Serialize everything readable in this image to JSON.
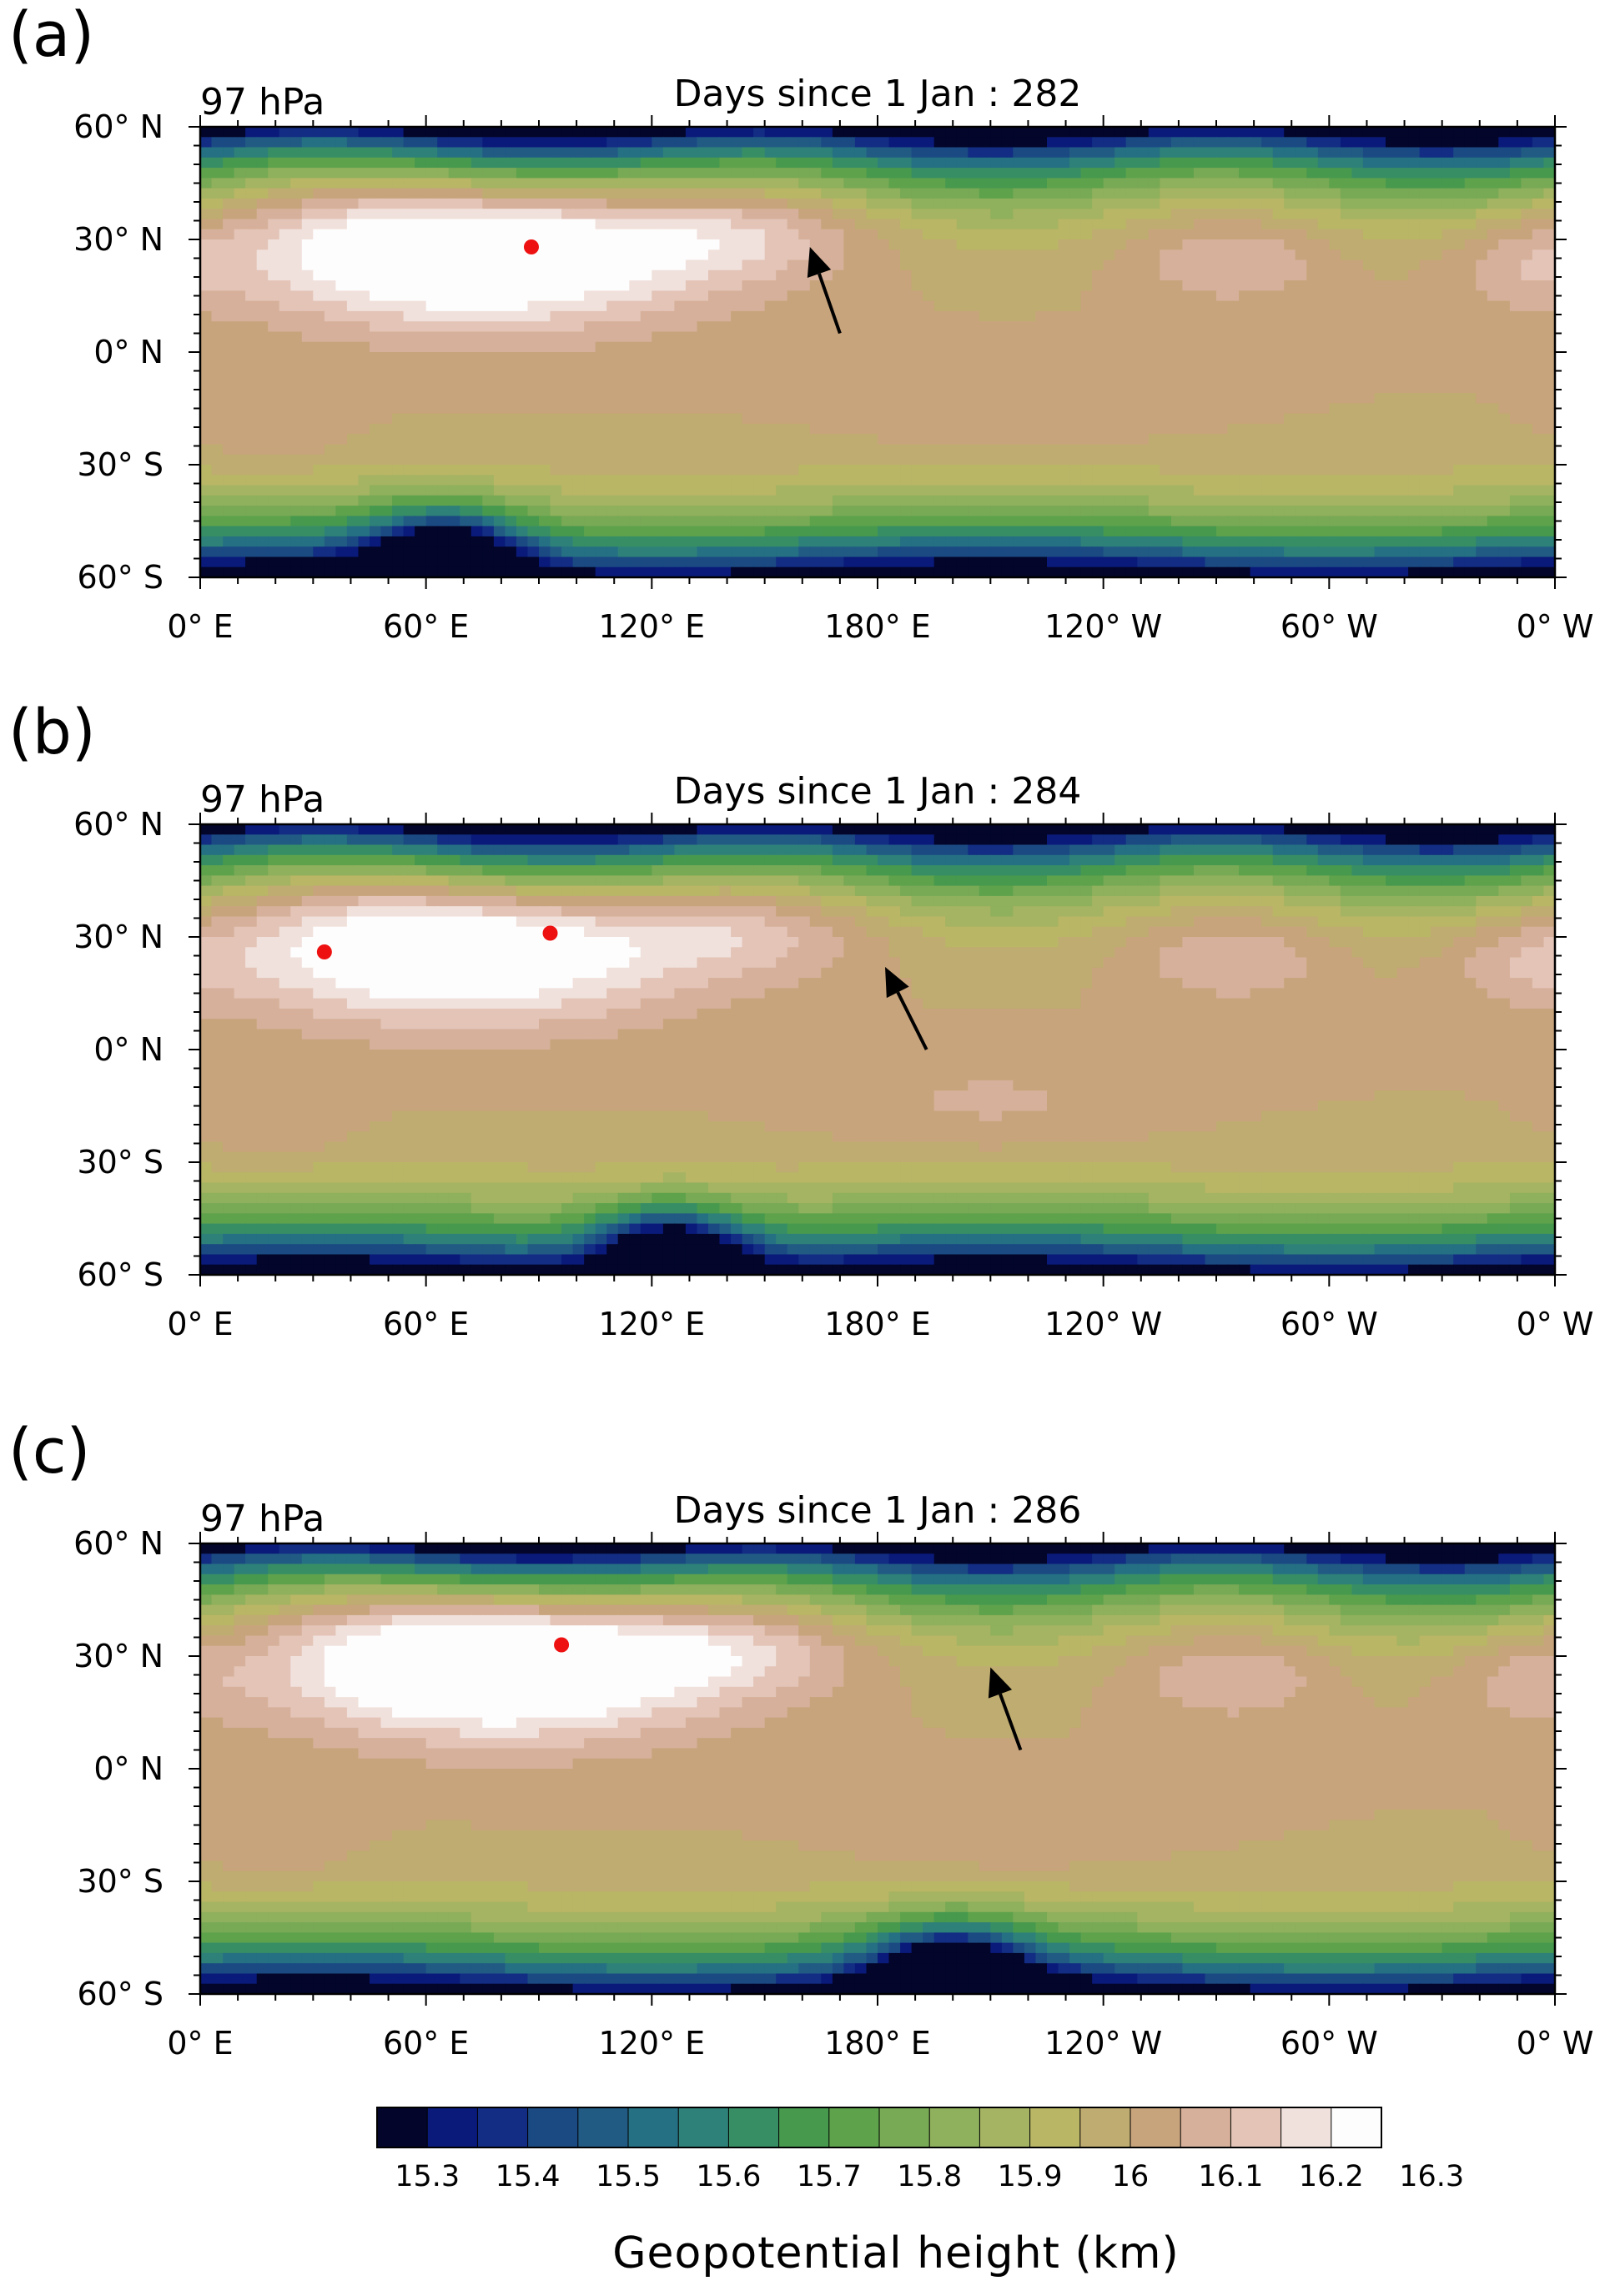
{
  "figure": {
    "panels": [
      {
        "label": "(a)",
        "level": "97 hPa",
        "time_prefix": "Days since 1 Jan",
        "time_sep": ":",
        "day": "282",
        "markers": [
          {
            "lon": 88,
            "lat": 28
          }
        ],
        "arrow": {
          "from": [
            170,
            5
          ],
          "to": [
            162,
            28
          ]
        },
        "field": {
          "north_anticyclone": {
            "lon_center": 75,
            "lat": 28,
            "lon_halfwidth": 75,
            "lat_halfwidth": 14,
            "amplitude": 0.4
          },
          "south_pacific_high": {
            "lon_center": 215,
            "lat": -15,
            "amplitude": 0.05
          },
          "south_trough": {
            "lon_center": 65,
            "lat": -55,
            "amplitude": -0.55
          }
        }
      },
      {
        "label": "(b)",
        "level": "97 hPa",
        "time_prefix": "Days since 1 Jan",
        "time_sep": ":",
        "day": "284",
        "markers": [
          {
            "lon": 33,
            "lat": 26
          },
          {
            "lon": 93,
            "lat": 31
          }
        ],
        "arrow": {
          "from": [
            193,
            0
          ],
          "to": [
            182,
            22
          ]
        },
        "field": {
          "north_anticyclone": {
            "lon_center": 70,
            "lat": 28,
            "lon_halfwidth": 75,
            "lat_halfwidth": 14,
            "amplitude": 0.36
          },
          "south_pacific_high": {
            "lon_center": 210,
            "lat": -15,
            "amplitude": 0.06
          },
          "south_trough": {
            "lon_center": 125,
            "lat": -55,
            "amplitude": -0.6
          }
        }
      },
      {
        "label": "(c)",
        "level": "97 hPa",
        "time_prefix": "Days since 1 Jan",
        "time_sep": ":",
        "day": "286",
        "markers": [
          {
            "lon": 96,
            "lat": 33
          }
        ],
        "arrow": {
          "from": [
            218,
            5
          ],
          "to": [
            210,
            27
          ]
        },
        "field": {
          "north_anticyclone": {
            "lon_center": 80,
            "lat": 30,
            "lon_halfwidth": 70,
            "lat_halfwidth": 14,
            "amplitude": 0.46
          },
          "south_pacific_high": {
            "lon_center": 215,
            "lat": -18,
            "amplitude": 0.05
          },
          "south_trough": {
            "lon_center": 200,
            "lat": -55,
            "amplitude": -0.6
          }
        }
      }
    ],
    "lat_labels": [
      "60° N",
      "30° N",
      "0° N",
      "30° S",
      "60° S"
    ],
    "lon_labels": [
      "0° E",
      "60° E",
      "120° E",
      "180° E",
      "120° W",
      "60° W",
      "0° W"
    ],
    "colorbar": {
      "ticks": [
        "15.3",
        "15.4",
        "15.5",
        "15.6",
        "15.7",
        "15.8",
        "15.9",
        "16",
        "16.1",
        "16.2",
        "16.3"
      ],
      "colors": [
        "#03052a",
        "#0a1a7a",
        "#122d83",
        "#1b4a83",
        "#215b84",
        "#257083",
        "#2e8178",
        "#378e65",
        "#47994e",
        "#5ea24c",
        "#78a955",
        "#8fb05c",
        "#a5b462",
        "#b9b666",
        "#bfac70",
        "#c8a47c",
        "#d6b09a",
        "#e3c4b7",
        "#f1e1dc",
        "#fdfdfd"
      ],
      "title": "Geopotential height (km)"
    }
  }
}
